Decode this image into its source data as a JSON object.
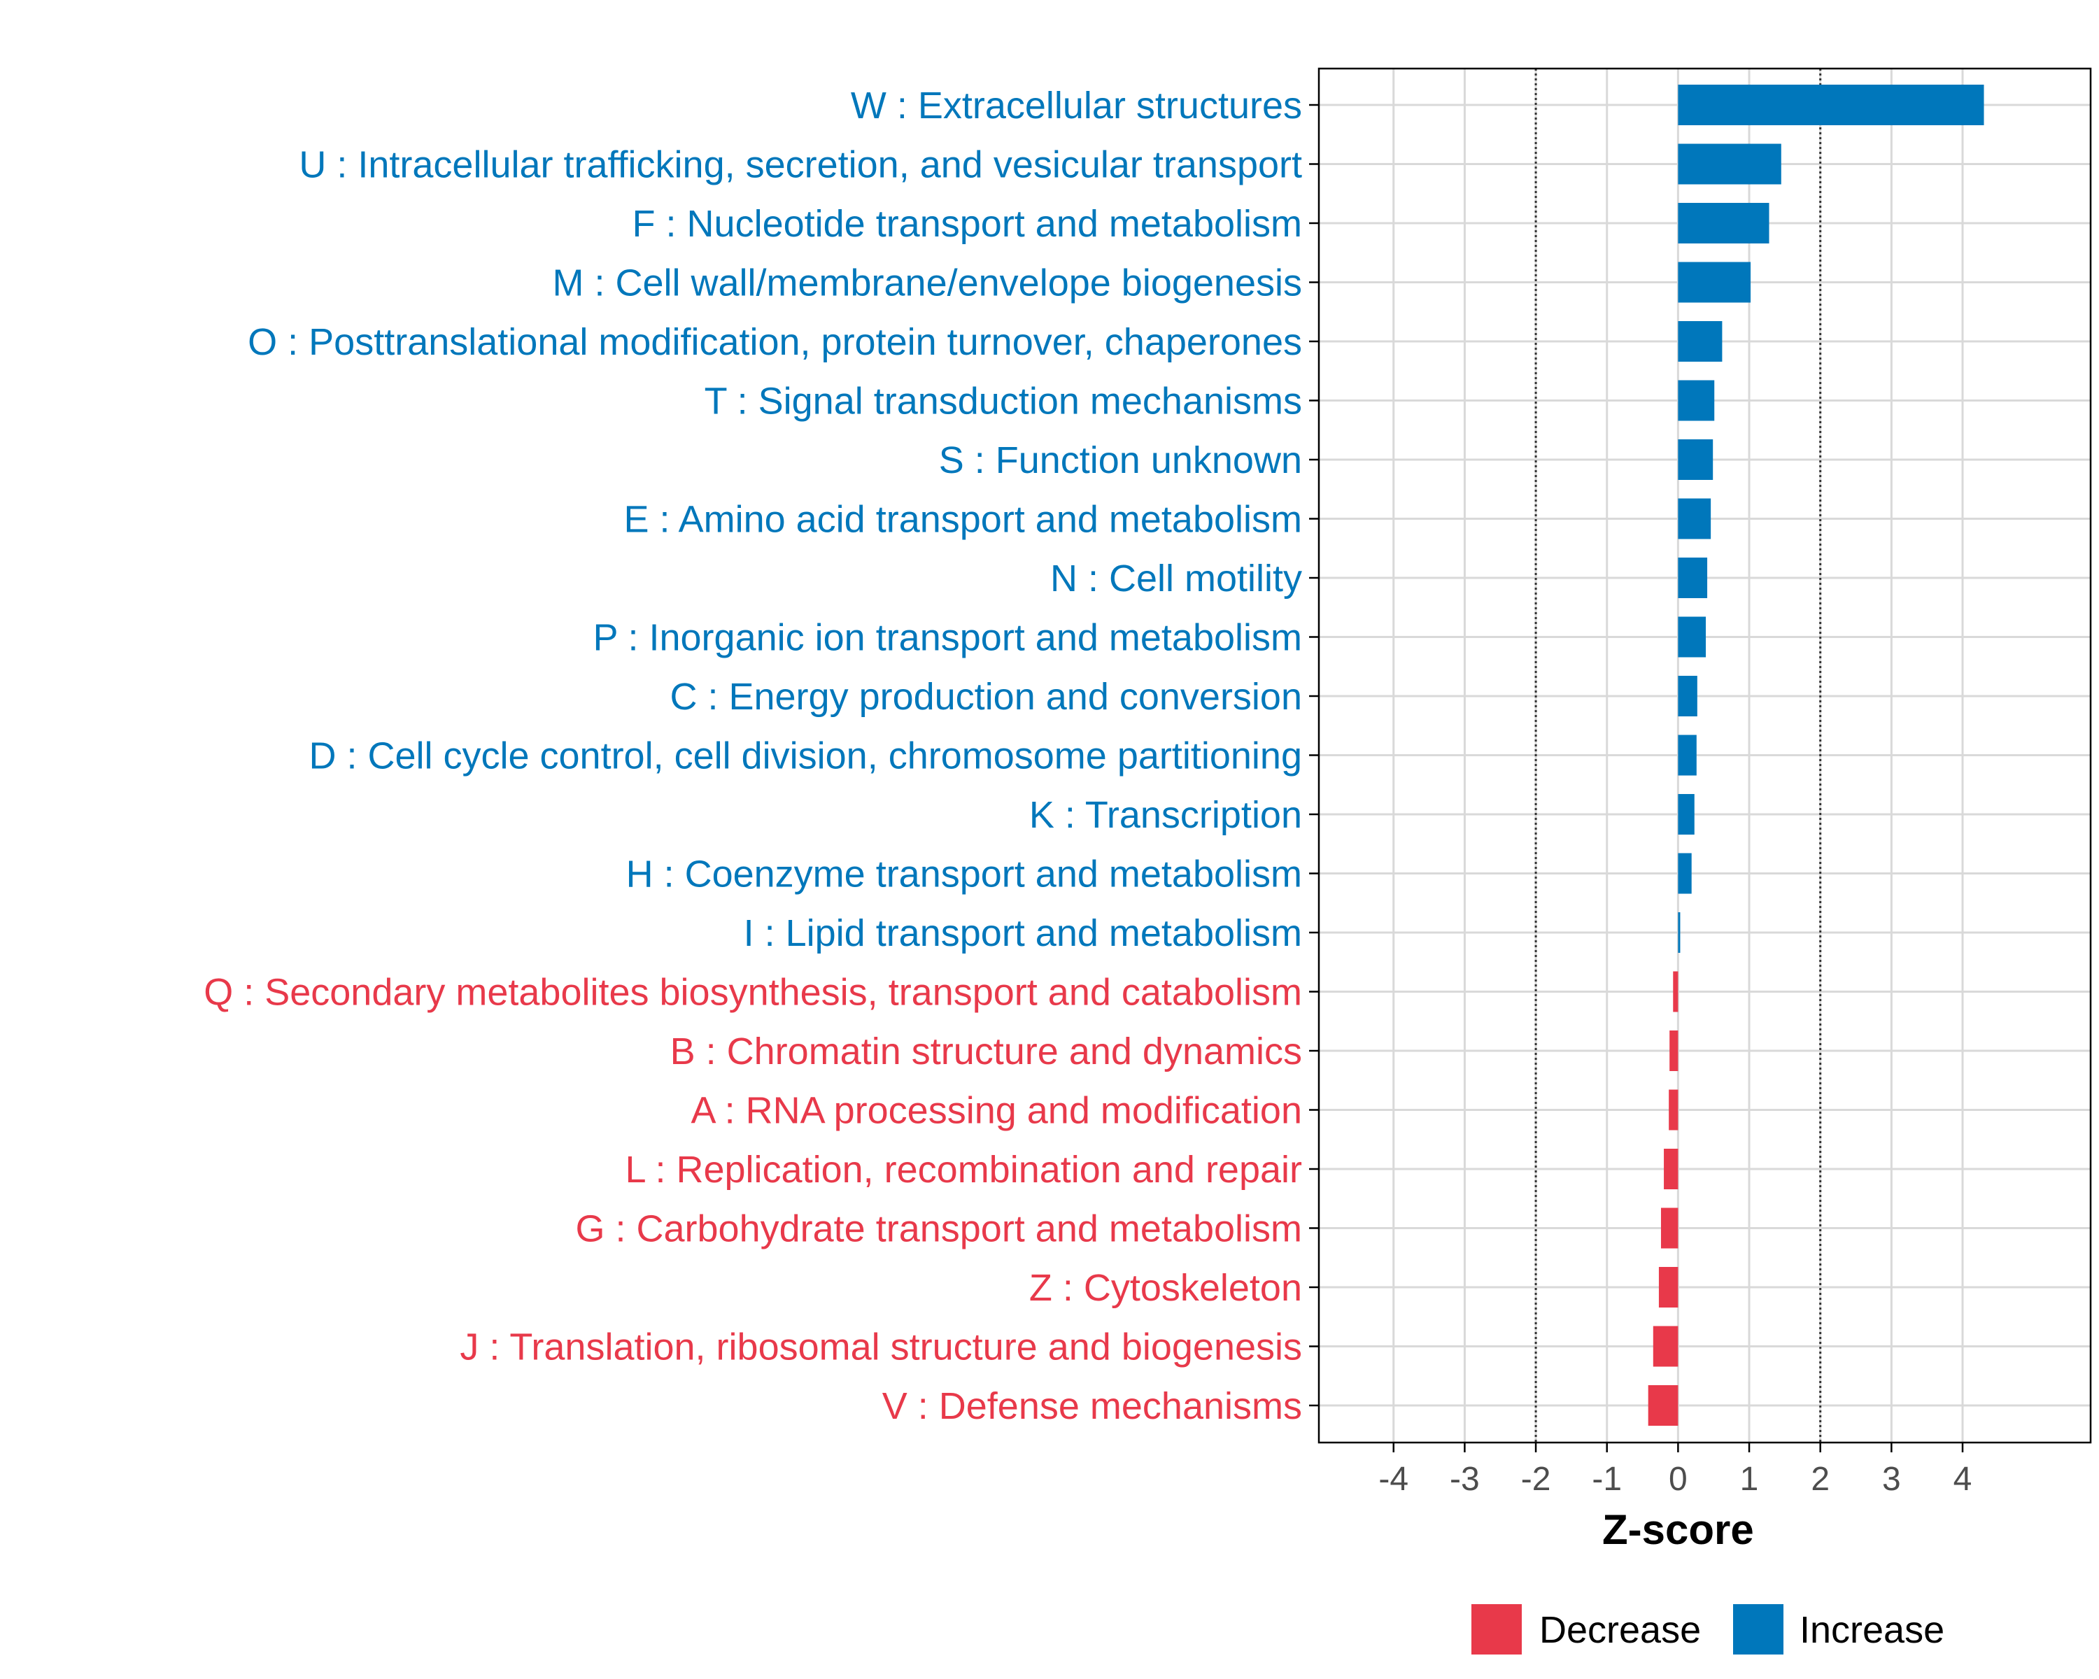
{
  "colors": {
    "increase": "#0077BB",
    "decrease": "#E8394A",
    "grid": "#D9D9D9",
    "axis": "#000000",
    "tick_text": "#4D4D4D",
    "threshold": "#333333"
  },
  "chart_data": {
    "type": "bar",
    "orientation": "horizontal",
    "title": "",
    "xlabel": "Z-score",
    "ylabel": "",
    "xlim": [
      -5.05,
      5.8
    ],
    "xticks": [
      -4,
      -3,
      -2,
      -1,
      0,
      1,
      2,
      3,
      4
    ],
    "xtick_labels": [
      "-4",
      "-3",
      "-2",
      "-1",
      "0",
      "1",
      "2",
      "3",
      "4"
    ],
    "thresholds": [
      -2,
      2
    ],
    "grid": true,
    "legend": {
      "position": "bottom",
      "entries": [
        {
          "label": "Decrease",
          "group": "decrease"
        },
        {
          "label": "Increase",
          "group": "increase"
        }
      ]
    },
    "categories": [
      "W : Extracellular structures",
      "U : Intracellular trafficking, secretion, and vesicular transport",
      "F : Nucleotide transport and metabolism",
      "M : Cell wall/membrane/envelope biogenesis",
      "O : Posttranslational modification, protein turnover, chaperones",
      "T : Signal transduction mechanisms",
      "S : Function unknown",
      "E : Amino acid transport and metabolism",
      "N : Cell motility",
      "P : Inorganic ion transport and metabolism",
      "C : Energy production and conversion",
      "D : Cell cycle control, cell division, chromosome partitioning",
      "K : Transcription",
      "H : Coenzyme transport and metabolism",
      "I : Lipid transport and metabolism",
      "Q : Secondary metabolites biosynthesis, transport and catabolism",
      "B : Chromatin structure and dynamics",
      "A : RNA processing and modification",
      "L : Replication, recombination and repair",
      "G : Carbohydrate transport and metabolism",
      "Z : Cytoskeleton",
      "J : Translation, ribosomal structure and biogenesis",
      "V : Defense mechanisms"
    ],
    "values": [
      4.3,
      1.45,
      1.28,
      1.02,
      0.62,
      0.51,
      0.49,
      0.46,
      0.41,
      0.39,
      0.27,
      0.26,
      0.23,
      0.19,
      0.03,
      -0.07,
      -0.12,
      -0.13,
      -0.2,
      -0.24,
      -0.27,
      -0.35,
      -0.42
    ],
    "groups": [
      "increase",
      "increase",
      "increase",
      "increase",
      "increase",
      "increase",
      "increase",
      "increase",
      "increase",
      "increase",
      "increase",
      "increase",
      "increase",
      "increase",
      "increase",
      "decrease",
      "decrease",
      "decrease",
      "decrease",
      "decrease",
      "decrease",
      "decrease",
      "decrease"
    ]
  }
}
